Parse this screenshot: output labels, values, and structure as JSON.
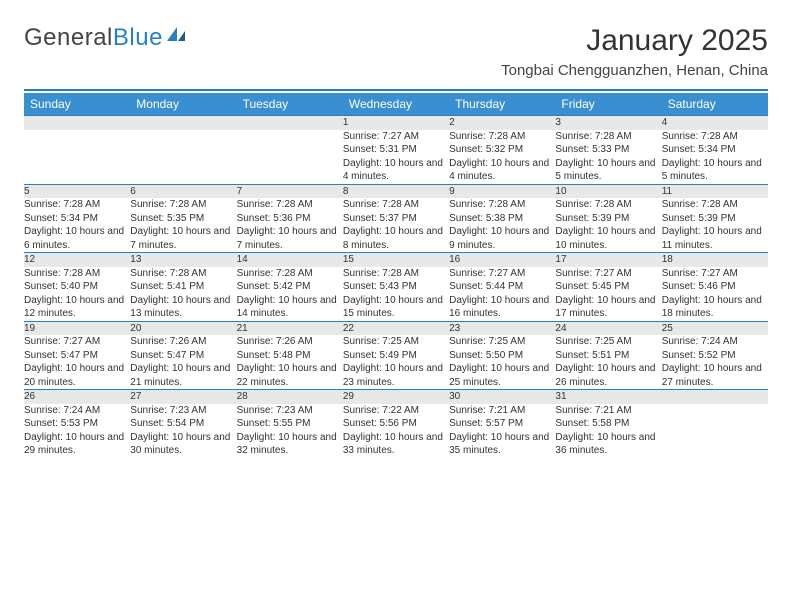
{
  "brand": {
    "general": "General",
    "blue": "Blue"
  },
  "title": {
    "month": "January 2025",
    "location": "Tongbai Chengguanzhen, Henan, China"
  },
  "colors": {
    "accent": "#3a8fd0",
    "divider": "#2a7fc0",
    "daynum_bg": "#e8e8e8"
  },
  "weekday_headers": [
    "Sunday",
    "Monday",
    "Tuesday",
    "Wednesday",
    "Thursday",
    "Friday",
    "Saturday"
  ],
  "weeks": [
    [
      null,
      null,
      null,
      {
        "n": "1",
        "sunrise": "Sunrise: 7:27 AM",
        "sunset": "Sunset: 5:31 PM",
        "daylight": "Daylight: 10 hours and 4 minutes."
      },
      {
        "n": "2",
        "sunrise": "Sunrise: 7:28 AM",
        "sunset": "Sunset: 5:32 PM",
        "daylight": "Daylight: 10 hours and 4 minutes."
      },
      {
        "n": "3",
        "sunrise": "Sunrise: 7:28 AM",
        "sunset": "Sunset: 5:33 PM",
        "daylight": "Daylight: 10 hours and 5 minutes."
      },
      {
        "n": "4",
        "sunrise": "Sunrise: 7:28 AM",
        "sunset": "Sunset: 5:34 PM",
        "daylight": "Daylight: 10 hours and 5 minutes."
      }
    ],
    [
      {
        "n": "5",
        "sunrise": "Sunrise: 7:28 AM",
        "sunset": "Sunset: 5:34 PM",
        "daylight": "Daylight: 10 hours and 6 minutes."
      },
      {
        "n": "6",
        "sunrise": "Sunrise: 7:28 AM",
        "sunset": "Sunset: 5:35 PM",
        "daylight": "Daylight: 10 hours and 7 minutes."
      },
      {
        "n": "7",
        "sunrise": "Sunrise: 7:28 AM",
        "sunset": "Sunset: 5:36 PM",
        "daylight": "Daylight: 10 hours and 7 minutes."
      },
      {
        "n": "8",
        "sunrise": "Sunrise: 7:28 AM",
        "sunset": "Sunset: 5:37 PM",
        "daylight": "Daylight: 10 hours and 8 minutes."
      },
      {
        "n": "9",
        "sunrise": "Sunrise: 7:28 AM",
        "sunset": "Sunset: 5:38 PM",
        "daylight": "Daylight: 10 hours and 9 minutes."
      },
      {
        "n": "10",
        "sunrise": "Sunrise: 7:28 AM",
        "sunset": "Sunset: 5:39 PM",
        "daylight": "Daylight: 10 hours and 10 minutes."
      },
      {
        "n": "11",
        "sunrise": "Sunrise: 7:28 AM",
        "sunset": "Sunset: 5:39 PM",
        "daylight": "Daylight: 10 hours and 11 minutes."
      }
    ],
    [
      {
        "n": "12",
        "sunrise": "Sunrise: 7:28 AM",
        "sunset": "Sunset: 5:40 PM",
        "daylight": "Daylight: 10 hours and 12 minutes."
      },
      {
        "n": "13",
        "sunrise": "Sunrise: 7:28 AM",
        "sunset": "Sunset: 5:41 PM",
        "daylight": "Daylight: 10 hours and 13 minutes."
      },
      {
        "n": "14",
        "sunrise": "Sunrise: 7:28 AM",
        "sunset": "Sunset: 5:42 PM",
        "daylight": "Daylight: 10 hours and 14 minutes."
      },
      {
        "n": "15",
        "sunrise": "Sunrise: 7:28 AM",
        "sunset": "Sunset: 5:43 PM",
        "daylight": "Daylight: 10 hours and 15 minutes."
      },
      {
        "n": "16",
        "sunrise": "Sunrise: 7:27 AM",
        "sunset": "Sunset: 5:44 PM",
        "daylight": "Daylight: 10 hours and 16 minutes."
      },
      {
        "n": "17",
        "sunrise": "Sunrise: 7:27 AM",
        "sunset": "Sunset: 5:45 PM",
        "daylight": "Daylight: 10 hours and 17 minutes."
      },
      {
        "n": "18",
        "sunrise": "Sunrise: 7:27 AM",
        "sunset": "Sunset: 5:46 PM",
        "daylight": "Daylight: 10 hours and 18 minutes."
      }
    ],
    [
      {
        "n": "19",
        "sunrise": "Sunrise: 7:27 AM",
        "sunset": "Sunset: 5:47 PM",
        "daylight": "Daylight: 10 hours and 20 minutes."
      },
      {
        "n": "20",
        "sunrise": "Sunrise: 7:26 AM",
        "sunset": "Sunset: 5:47 PM",
        "daylight": "Daylight: 10 hours and 21 minutes."
      },
      {
        "n": "21",
        "sunrise": "Sunrise: 7:26 AM",
        "sunset": "Sunset: 5:48 PM",
        "daylight": "Daylight: 10 hours and 22 minutes."
      },
      {
        "n": "22",
        "sunrise": "Sunrise: 7:25 AM",
        "sunset": "Sunset: 5:49 PM",
        "daylight": "Daylight: 10 hours and 23 minutes."
      },
      {
        "n": "23",
        "sunrise": "Sunrise: 7:25 AM",
        "sunset": "Sunset: 5:50 PM",
        "daylight": "Daylight: 10 hours and 25 minutes."
      },
      {
        "n": "24",
        "sunrise": "Sunrise: 7:25 AM",
        "sunset": "Sunset: 5:51 PM",
        "daylight": "Daylight: 10 hours and 26 minutes."
      },
      {
        "n": "25",
        "sunrise": "Sunrise: 7:24 AM",
        "sunset": "Sunset: 5:52 PM",
        "daylight": "Daylight: 10 hours and 27 minutes."
      }
    ],
    [
      {
        "n": "26",
        "sunrise": "Sunrise: 7:24 AM",
        "sunset": "Sunset: 5:53 PM",
        "daylight": "Daylight: 10 hours and 29 minutes."
      },
      {
        "n": "27",
        "sunrise": "Sunrise: 7:23 AM",
        "sunset": "Sunset: 5:54 PM",
        "daylight": "Daylight: 10 hours and 30 minutes."
      },
      {
        "n": "28",
        "sunrise": "Sunrise: 7:23 AM",
        "sunset": "Sunset: 5:55 PM",
        "daylight": "Daylight: 10 hours and 32 minutes."
      },
      {
        "n": "29",
        "sunrise": "Sunrise: 7:22 AM",
        "sunset": "Sunset: 5:56 PM",
        "daylight": "Daylight: 10 hours and 33 minutes."
      },
      {
        "n": "30",
        "sunrise": "Sunrise: 7:21 AM",
        "sunset": "Sunset: 5:57 PM",
        "daylight": "Daylight: 10 hours and 35 minutes."
      },
      {
        "n": "31",
        "sunrise": "Sunrise: 7:21 AM",
        "sunset": "Sunset: 5:58 PM",
        "daylight": "Daylight: 10 hours and 36 minutes."
      },
      null
    ]
  ]
}
